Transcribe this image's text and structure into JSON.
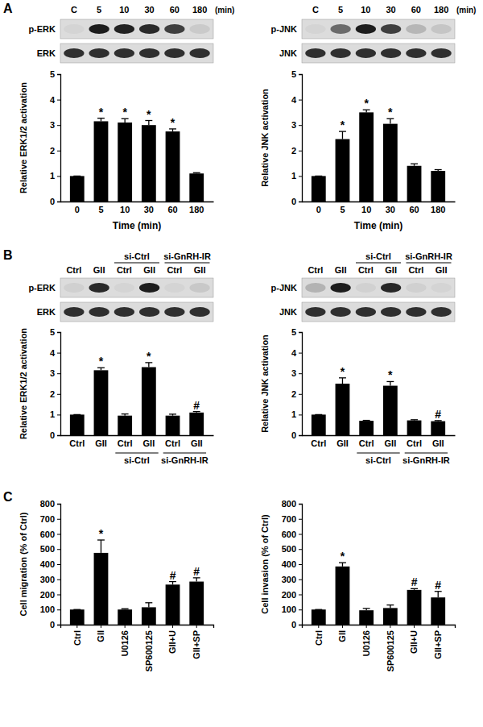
{
  "chart_data": [
    {
      "type": "bar",
      "x_label": "Time (min)",
      "y_label": "Relative ERK1/2 activation",
      "categories": [
        "0",
        "5",
        "10",
        "30",
        "60",
        "180"
      ],
      "values": [
        1,
        3.15,
        3.1,
        3.0,
        2.75,
        1.1
      ],
      "errors": [
        0,
        0.12,
        0.15,
        0.18,
        0.1,
        0.03
      ],
      "annotations": [
        null,
        "*",
        "*",
        "*",
        "*",
        null
      ],
      "color": "#000000",
      "ylim": [
        0,
        5
      ],
      "yticks": [
        0,
        1,
        2,
        3,
        4,
        5
      ]
    },
    {
      "type": "bar",
      "x_label": "Time (min)",
      "y_label": "Relative JNK activation",
      "categories": [
        "0",
        "5",
        "10",
        "30",
        "60",
        "180"
      ],
      "values": [
        1,
        2.45,
        3.5,
        3.05,
        1.4,
        1.2
      ],
      "errors": [
        0,
        0.3,
        0.1,
        0.2,
        0.08,
        0.05
      ],
      "annotations": [
        null,
        "*",
        "*",
        "*",
        null,
        null
      ],
      "color": "#000000",
      "ylim": [
        0,
        5
      ],
      "yticks": [
        0,
        1,
        2,
        3,
        4,
        5
      ]
    },
    {
      "type": "bar",
      "y_label": "Relative ERK1/2 activation",
      "categories": [
        "Ctrl",
        "GII",
        "Ctrl",
        "GII",
        "Ctrl",
        "GII"
      ],
      "groups": [
        null,
        null,
        "si-Ctrl",
        "si-Ctrl",
        "si-GnRH-IR",
        "si-GnRH-IR"
      ],
      "values": [
        1,
        3.15,
        0.95,
        3.3,
        0.95,
        1.1
      ],
      "errors": [
        0,
        0.12,
        0.08,
        0.22,
        0.07,
        0.05
      ],
      "annotations": [
        null,
        "*",
        null,
        "*",
        null,
        "#"
      ],
      "color": "#000000",
      "ylim": [
        0,
        5
      ],
      "yticks": [
        0,
        1,
        2,
        3,
        4,
        5
      ]
    },
    {
      "type": "bar",
      "y_label": "Relative JNK activation",
      "categories": [
        "Ctrl",
        "GII",
        "Ctrl",
        "GII",
        "Ctrl",
        "GII"
      ],
      "groups": [
        null,
        null,
        "si-Ctrl",
        "si-Ctrl",
        "si-GnRH-IR",
        "si-GnRH-IR"
      ],
      "values": [
        1,
        2.5,
        0.7,
        2.4,
        0.72,
        0.68
      ],
      "errors": [
        0,
        0.28,
        0.02,
        0.2,
        0.03,
        0.03
      ],
      "annotations": [
        null,
        "*",
        null,
        "*",
        null,
        "#"
      ],
      "color": "#000000",
      "ylim": [
        0,
        5
      ],
      "yticks": [
        0,
        1,
        2,
        3,
        4,
        5
      ]
    },
    {
      "type": "bar",
      "y_label": "Cell migration (% of Ctrl)",
      "categories": [
        "Ctrl",
        "GII",
        "U0126",
        "SP600125",
        "GII+U",
        "GII+SP"
      ],
      "values": [
        100,
        475,
        100,
        115,
        265,
        285
      ],
      "errors": [
        0,
        85,
        5,
        30,
        20,
        25
      ],
      "annotations": [
        null,
        "*",
        null,
        null,
        "#",
        "#"
      ],
      "color": "#000000",
      "ylim": [
        0,
        800
      ],
      "yticks": [
        0,
        100,
        200,
        300,
        400,
        500,
        600,
        700,
        800
      ]
    },
    {
      "type": "bar",
      "y_label": "Cell invasion (% of Ctrl)",
      "categories": [
        "Ctrl",
        "GII",
        "U0126",
        "SP600125",
        "GII+U",
        "GII+SP"
      ],
      "values": [
        100,
        385,
        95,
        110,
        230,
        180
      ],
      "errors": [
        0,
        25,
        12,
        20,
        8,
        40
      ],
      "annotations": [
        null,
        "*",
        null,
        null,
        "#",
        "#"
      ],
      "color": "#000000",
      "ylim": [
        0,
        800
      ],
      "yticks": [
        0,
        100,
        200,
        300,
        400,
        500,
        600,
        700,
        800
      ]
    }
  ],
  "panel_labels": [
    "A",
    "B",
    "C"
  ],
  "blots": [
    {
      "lanes": [
        "C",
        "5",
        "10",
        "30",
        "60",
        "180"
      ],
      "unit": "(min)",
      "rows": [
        "p-ERK",
        "ERK"
      ]
    },
    {
      "lanes": [
        "C",
        "5",
        "10",
        "30",
        "60",
        "180"
      ],
      "unit": "(min)",
      "rows": [
        "p-JNK",
        "JNK"
      ]
    },
    {
      "lanes": [
        "Ctrl",
        "GII",
        "Ctrl",
        "GII",
        "Ctrl",
        "GII"
      ],
      "groups": [
        null,
        null,
        "si-Ctrl",
        "si-Ctrl",
        "si-GnRH-IR",
        "si-GnRH-IR"
      ],
      "rows": [
        "p-ERK",
        "ERK"
      ]
    },
    {
      "lanes": [
        "Ctrl",
        "GII",
        "Ctrl",
        "GII",
        "Ctrl",
        "GII"
      ],
      "groups": [
        null,
        null,
        "si-Ctrl",
        "si-Ctrl",
        "si-GnRH-IR",
        "si-GnRH-IR"
      ],
      "rows": [
        "p-JNK",
        "JNK"
      ]
    }
  ]
}
